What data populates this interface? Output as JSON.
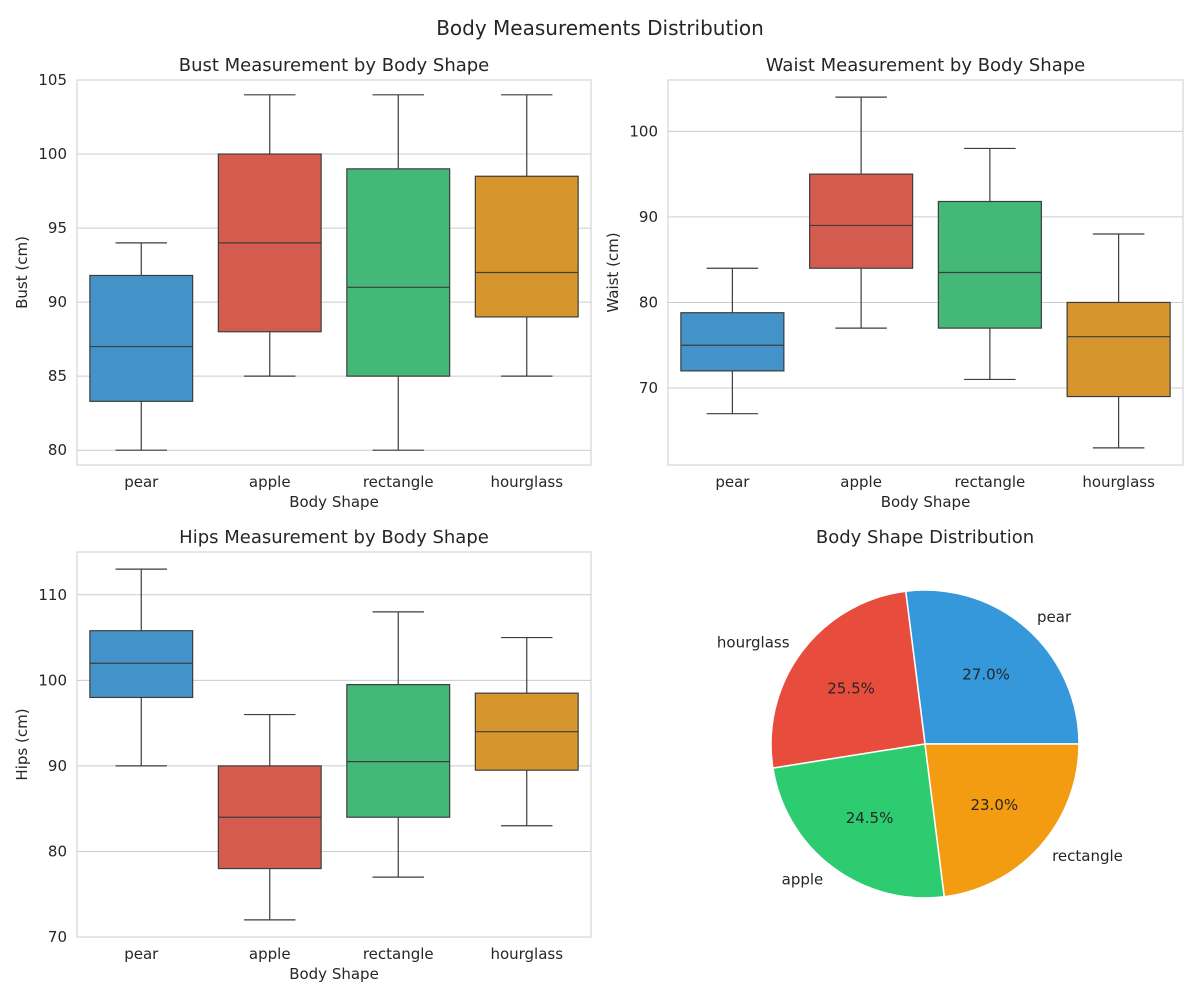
{
  "figure": {
    "title": "Body Measurements Distribution"
  },
  "chart_data": [
    {
      "type": "box",
      "title": "Bust Measurement by Body Shape",
      "xlabel": "Body Shape",
      "ylabel": "Bust (cm)",
      "ylim": [
        79,
        105
      ],
      "yticks": [
        80,
        85,
        90,
        95,
        100,
        105
      ],
      "grid": true,
      "categories": [
        "pear",
        "apple",
        "rectangle",
        "hourglass"
      ],
      "boxes": [
        {
          "min": 80,
          "q1": 83.3,
          "median": 87,
          "q3": 91.8,
          "max": 94
        },
        {
          "min": 85,
          "q1": 88,
          "median": 94,
          "q3": 100,
          "max": 104
        },
        {
          "min": 80,
          "q1": 85,
          "median": 91,
          "q3": 99,
          "max": 104
        },
        {
          "min": 85,
          "q1": 89,
          "median": 92,
          "q3": 98.5,
          "max": 104
        }
      ]
    },
    {
      "type": "box",
      "title": "Waist Measurement by Body Shape",
      "xlabel": "Body Shape",
      "ylabel": "Waist (cm)",
      "ylim": [
        61,
        106
      ],
      "yticks": [
        70,
        80,
        90,
        100
      ],
      "grid": true,
      "categories": [
        "pear",
        "apple",
        "rectangle",
        "hourglass"
      ],
      "boxes": [
        {
          "min": 67,
          "q1": 72,
          "median": 75,
          "q3": 78.8,
          "max": 84
        },
        {
          "min": 77,
          "q1": 84,
          "median": 89,
          "q3": 95,
          "max": 104
        },
        {
          "min": 71,
          "q1": 77,
          "median": 83.5,
          "q3": 91.8,
          "max": 98
        },
        {
          "min": 63,
          "q1": 69,
          "median": 76,
          "q3": 80,
          "max": 88
        }
      ]
    },
    {
      "type": "box",
      "title": "Hips Measurement by Body Shape",
      "xlabel": "Body Shape",
      "ylabel": "Hips (cm)",
      "ylim": [
        70,
        115
      ],
      "yticks": [
        70,
        80,
        90,
        100,
        110
      ],
      "grid": true,
      "categories": [
        "pear",
        "apple",
        "rectangle",
        "hourglass"
      ],
      "boxes": [
        {
          "min": 90,
          "q1": 98,
          "median": 102,
          "q3": 105.8,
          "max": 113
        },
        {
          "min": 72,
          "q1": 78,
          "median": 84,
          "q3": 90,
          "max": 96
        },
        {
          "min": 77,
          "q1": 84,
          "median": 90.5,
          "q3": 99.5,
          "max": 108
        },
        {
          "min": 83,
          "q1": 89.5,
          "median": 94,
          "q3": 98.5,
          "max": 105
        }
      ]
    },
    {
      "type": "pie",
      "title": "Body Shape Distribution",
      "slices": [
        {
          "label": "pear",
          "value": 27.0,
          "pct_label": "27.0%",
          "color": "#3498db"
        },
        {
          "label": "hourglass",
          "value": 25.5,
          "pct_label": "25.5%",
          "color": "#e74c3c"
        },
        {
          "label": "apple",
          "value": 24.5,
          "pct_label": "24.5%",
          "color": "#2ecc71"
        },
        {
          "label": "rectangle",
          "value": 23.0,
          "pct_label": "23.0%",
          "color": "#f39c12"
        }
      ]
    }
  ],
  "colors": {
    "category_fills": [
      "#4393c9",
      "#d45c4f",
      "#43b877",
      "#d7952d"
    ],
    "box_edge": "#3d3d3d",
    "grid": "#cccccc",
    "axis_frame": "#cccccc",
    "text": "#262626"
  }
}
